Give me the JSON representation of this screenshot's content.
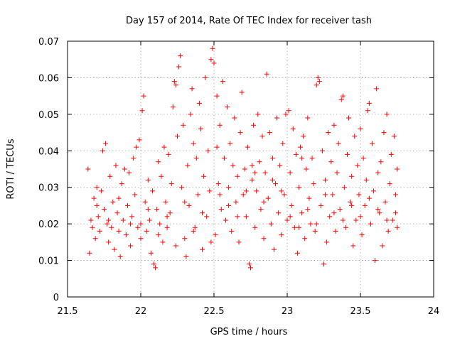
{
  "chart_data": {
    "type": "scatter",
    "title": "Day 157 of 2014, Rate Of TEC Index for receiver tash",
    "xlabel": "GPS time / hours",
    "ylabel": "ROTI / TECUs",
    "xlim": [
      21.5,
      24
    ],
    "ylim": [
      0,
      0.07
    ],
    "xticks": [
      21.5,
      22,
      22.5,
      23,
      23.5,
      24
    ],
    "xtick_labels": [
      "21.5",
      "22",
      "22.5",
      "23",
      "23.5",
      "24"
    ],
    "yticks": [
      0,
      0.01,
      0.02,
      0.03,
      0.04,
      0.05,
      0.06,
      0.07
    ],
    "ytick_labels": [
      "0",
      "0.01",
      "0.02",
      "0.03",
      "0.04",
      "0.05",
      "0.06",
      "0.07"
    ],
    "grid": true,
    "marker": "+",
    "marker_color": "#ff0000",
    "series": [
      {
        "name": "ROTI",
        "points": [
          [
            21.64,
            0.035
          ],
          [
            21.65,
            0.012
          ],
          [
            21.66,
            0.021
          ],
          [
            21.67,
            0.019
          ],
          [
            21.68,
            0.027
          ],
          [
            21.69,
            0.016
          ],
          [
            21.7,
            0.03
          ],
          [
            21.71,
            0.022
          ],
          [
            21.72,
            0.018
          ],
          [
            21.73,
            0.029
          ],
          [
            21.74,
            0.04
          ],
          [
            21.75,
            0.024
          ],
          [
            21.76,
            0.042
          ],
          [
            21.77,
            0.02
          ],
          [
            21.78,
            0.015
          ],
          [
            21.79,
            0.033
          ],
          [
            21.8,
            0.019
          ],
          [
            21.81,
            0.026
          ],
          [
            21.82,
            0.013
          ],
          [
            21.83,
            0.036
          ],
          [
            21.84,
            0.023
          ],
          [
            21.85,
            0.018
          ],
          [
            21.86,
            0.011
          ],
          [
            21.87,
            0.031
          ],
          [
            21.88,
            0.021
          ],
          [
            21.89,
            0.035
          ],
          [
            21.9,
            0.017
          ],
          [
            21.91,
            0.025
          ],
          [
            21.92,
            0.034
          ],
          [
            21.93,
            0.014
          ],
          [
            21.94,
            0.022
          ],
          [
            21.95,
            0.038
          ],
          [
            21.96,
            0.028
          ],
          [
            21.97,
            0.041
          ],
          [
            21.98,
            0.019
          ],
          [
            21.99,
            0.043
          ],
          [
            22.0,
            0.016
          ],
          [
            22.01,
            0.051
          ],
          [
            22.02,
            0.055
          ],
          [
            22.03,
            0.026
          ],
          [
            22.04,
            0.018
          ],
          [
            22.05,
            0.032
          ],
          [
            22.06,
            0.021
          ],
          [
            22.07,
            0.012
          ],
          [
            22.08,
            0.029
          ],
          [
            22.09,
            0.009
          ],
          [
            22.1,
            0.008
          ],
          [
            22.11,
            0.024
          ],
          [
            22.12,
            0.037
          ],
          [
            22.13,
            0.02
          ],
          [
            22.14,
            0.033
          ],
          [
            22.15,
            0.015
          ],
          [
            22.16,
            0.041
          ],
          [
            22.17,
            0.026
          ],
          [
            22.18,
            0.019
          ],
          [
            22.19,
            0.039
          ],
          [
            22.2,
            0.023
          ],
          [
            22.21,
            0.031
          ],
          [
            22.22,
            0.052
          ],
          [
            22.23,
            0.059
          ],
          [
            22.24,
            0.058
          ],
          [
            22.25,
            0.044
          ],
          [
            22.26,
            0.063
          ],
          [
            22.27,
            0.066
          ],
          [
            22.28,
            0.03
          ],
          [
            22.29,
            0.047
          ],
          [
            22.3,
            0.016
          ],
          [
            22.31,
            0.011
          ],
          [
            22.32,
            0.036
          ],
          [
            22.33,
            0.025
          ],
          [
            22.34,
            0.05
          ],
          [
            22.35,
            0.057
          ],
          [
            22.36,
            0.042
          ],
          [
            22.37,
            0.019
          ],
          [
            22.38,
            0.038
          ],
          [
            22.39,
            0.028
          ],
          [
            22.4,
            0.053
          ],
          [
            22.41,
            0.046
          ],
          [
            22.42,
            0.013
          ],
          [
            22.43,
            0.033
          ],
          [
            22.44,
            0.06
          ],
          [
            22.45,
            0.022
          ],
          [
            22.46,
            0.04
          ],
          [
            22.47,
            0.029
          ],
          [
            22.48,
            0.065
          ],
          [
            22.49,
            0.068
          ],
          [
            22.5,
            0.064
          ],
          [
            22.51,
            0.017
          ],
          [
            22.52,
            0.055
          ],
          [
            22.53,
            0.031
          ],
          [
            22.54,
            0.047
          ],
          [
            22.55,
            0.024
          ],
          [
            22.56,
            0.059
          ],
          [
            22.57,
            0.038
          ],
          [
            22.58,
            0.021
          ],
          [
            22.59,
            0.052
          ],
          [
            22.6,
            0.03
          ],
          [
            22.61,
            0.042
          ],
          [
            22.62,
            0.018
          ],
          [
            22.63,
            0.036
          ],
          [
            22.64,
            0.049
          ],
          [
            22.65,
            0.026
          ],
          [
            22.66,
            0.033
          ],
          [
            22.67,
            0.015
          ],
          [
            22.68,
            0.045
          ],
          [
            22.69,
            0.056
          ],
          [
            22.7,
            0.028
          ],
          [
            22.71,
            0.035
          ],
          [
            22.72,
            0.022
          ],
          [
            22.73,
            0.041
          ],
          [
            22.74,
            0.009
          ],
          [
            22.75,
            0.008
          ],
          [
            22.76,
            0.032
          ],
          [
            22.77,
            0.047
          ],
          [
            22.78,
            0.019
          ],
          [
            22.79,
            0.029
          ],
          [
            22.8,
            0.05
          ],
          [
            22.81,
            0.037
          ],
          [
            22.82,
            0.024
          ],
          [
            22.83,
            0.044
          ],
          [
            22.84,
            0.016
          ],
          [
            22.85,
            0.034
          ],
          [
            22.86,
            0.061
          ],
          [
            22.87,
            0.027
          ],
          [
            22.88,
            0.045
          ],
          [
            22.89,
            0.02
          ],
          [
            22.9,
            0.038
          ],
          [
            22.91,
            0.013
          ],
          [
            22.92,
            0.031
          ],
          [
            22.93,
            0.049
          ],
          [
            22.94,
            0.023
          ],
          [
            22.95,
            0.036
          ],
          [
            22.96,
            0.017
          ],
          [
            22.97,
            0.042
          ],
          [
            22.98,
            0.028
          ],
          [
            22.99,
            0.05
          ],
          [
            23.0,
            0.021
          ],
          [
            23.01,
            0.051
          ],
          [
            23.02,
            0.034
          ],
          [
            23.03,
            0.025
          ],
          [
            23.04,
            0.046
          ],
          [
            23.05,
            0.019
          ],
          [
            23.06,
            0.039
          ],
          [
            23.07,
            0.012
          ],
          [
            23.08,
            0.03
          ],
          [
            23.09,
            0.041
          ],
          [
            23.1,
            0.023
          ],
          [
            23.11,
            0.044
          ],
          [
            23.12,
            0.016
          ],
          [
            23.13,
            0.035
          ],
          [
            23.14,
            0.049
          ],
          [
            23.15,
            0.027
          ],
          [
            23.16,
            0.02
          ],
          [
            23.17,
            0.038
          ],
          [
            23.18,
            0.031
          ],
          [
            23.19,
            0.018
          ],
          [
            23.2,
            0.058
          ],
          [
            23.21,
            0.06
          ],
          [
            23.22,
            0.059
          ],
          [
            23.23,
            0.025
          ],
          [
            23.24,
            0.04
          ],
          [
            23.25,
            0.009
          ],
          [
            23.26,
            0.032
          ],
          [
            23.27,
            0.015
          ],
          [
            23.28,
            0.045
          ],
          [
            23.29,
            0.022
          ],
          [
            23.3,
            0.037
          ],
          [
            23.31,
            0.028
          ],
          [
            23.32,
            0.047
          ],
          [
            23.33,
            0.018
          ],
          [
            23.34,
            0.034
          ],
          [
            23.35,
            0.042
          ],
          [
            23.36,
            0.024
          ],
          [
            23.37,
            0.054
          ],
          [
            23.38,
            0.055
          ],
          [
            23.39,
            0.03
          ],
          [
            23.4,
            0.019
          ],
          [
            23.41,
            0.039
          ],
          [
            23.42,
            0.049
          ],
          [
            23.43,
            0.026
          ],
          [
            23.44,
            0.033
          ],
          [
            23.45,
            0.014
          ],
          [
            23.46,
            0.044
          ],
          [
            23.47,
            0.021
          ],
          [
            23.48,
            0.036
          ],
          [
            23.49,
            0.028
          ],
          [
            23.5,
            0.046
          ],
          [
            23.51,
            0.017
          ],
          [
            23.52,
            0.038
          ],
          [
            23.53,
            0.025
          ],
          [
            23.54,
            0.032
          ],
          [
            23.55,
            0.051
          ],
          [
            23.56,
            0.053
          ],
          [
            23.57,
            0.02
          ],
          [
            23.58,
            0.042
          ],
          [
            23.59,
            0.029
          ],
          [
            23.6,
            0.01
          ],
          [
            23.61,
            0.057
          ],
          [
            23.62,
            0.034
          ],
          [
            23.63,
            0.023
          ],
          [
            23.64,
            0.037
          ],
          [
            23.65,
            0.014
          ],
          [
            23.66,
            0.045
          ],
          [
            23.67,
            0.026
          ],
          [
            23.68,
            0.05
          ],
          [
            23.69,
            0.018
          ],
          [
            23.7,
            0.031
          ],
          [
            23.71,
            0.039
          ],
          [
            23.72,
            0.021
          ],
          [
            23.73,
            0.044
          ],
          [
            23.74,
            0.028
          ],
          [
            23.75,
            0.035
          ],
          [
            23.75,
            0.019
          ],
          [
            21.7,
            0.025
          ],
          [
            21.78,
            0.021
          ],
          [
            21.85,
            0.027
          ],
          [
            21.93,
            0.02
          ],
          [
            22.0,
            0.02
          ],
          [
            22.05,
            0.024
          ],
          [
            22.12,
            0.017
          ],
          [
            22.18,
            0.022
          ],
          [
            22.24,
            0.014
          ],
          [
            22.3,
            0.026
          ],
          [
            22.36,
            0.018
          ],
          [
            22.42,
            0.023
          ],
          [
            22.48,
            0.015
          ],
          [
            22.54,
            0.028
          ],
          [
            22.6,
            0.025
          ],
          [
            22.66,
            0.022
          ],
          [
            22.72,
            0.029
          ],
          [
            22.78,
            0.034
          ],
          [
            22.84,
            0.026
          ],
          [
            22.9,
            0.032
          ],
          [
            22.96,
            0.029
          ],
          [
            23.02,
            0.022
          ],
          [
            23.08,
            0.019
          ],
          [
            23.14,
            0.024
          ],
          [
            23.2,
            0.02
          ],
          [
            23.26,
            0.028
          ],
          [
            23.32,
            0.023
          ],
          [
            23.38,
            0.021
          ],
          [
            23.44,
            0.025
          ],
          [
            23.5,
            0.022
          ],
          [
            23.56,
            0.027
          ],
          [
            23.62,
            0.024
          ],
          [
            23.68,
            0.021
          ],
          [
            23.74,
            0.023
          ],
          [
            22.52,
            0.041
          ],
          [
            22.76,
            0.036
          ],
          [
            23.1,
            0.038
          ]
        ]
      }
    ]
  }
}
